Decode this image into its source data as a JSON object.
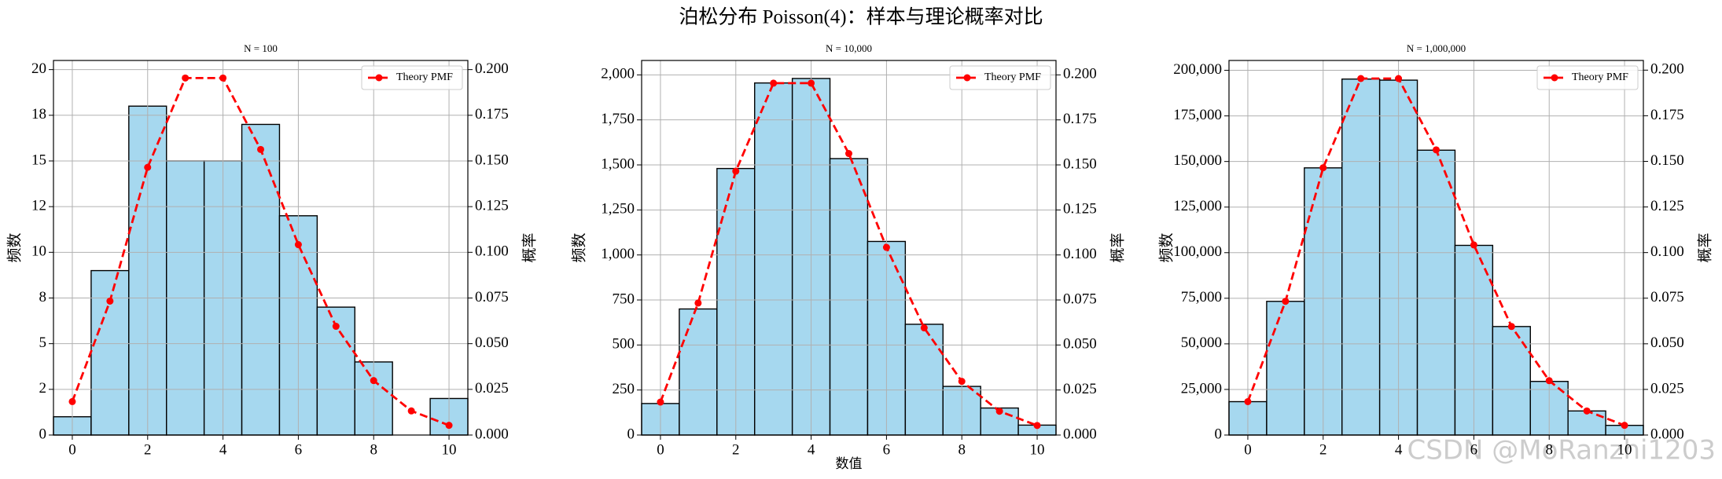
{
  "title": "泊松分布 Poisson(4)：样本与理论概率对比",
  "watermark": "CSDN @MoRanzhi1203",
  "chart_data": [
    {
      "type": "histogram",
      "title": "N = 100",
      "ylabel": "频数",
      "y2label": "概率",
      "bins": [
        -0.5,
        0.5,
        1.5,
        2.5,
        3.5,
        4.5,
        5.5,
        6.5,
        7.5,
        8.5,
        9.5,
        10.5
      ],
      "values": [
        1,
        9,
        18,
        15,
        15,
        17,
        12,
        7,
        4,
        0,
        2
      ],
      "color": "#a6d8ef",
      "edgecolor": "#000000",
      "xlim": [
        -0.5,
        10.5
      ],
      "xticks": [
        0,
        2,
        4,
        6,
        8,
        10
      ],
      "ylim": [
        0,
        20.5
      ],
      "yticks": [
        0,
        {
          "value": 2.5,
          "label": "2"
        },
        5,
        {
          "value": 7.5,
          "label": "8"
        },
        10,
        {
          "value": 12.5,
          "label": "12"
        },
        15,
        {
          "value": 17.5,
          "label": "18"
        },
        20
      ],
      "y2lim": [
        0,
        0.205
      ],
      "y2ticks": [
        {
          "value": 0,
          "label": "0.000"
        },
        0.025,
        {
          "value": 0.05,
          "label": "0.050"
        },
        0.075,
        {
          "value": 0.1,
          "label": "0.100"
        },
        0.125,
        {
          "value": 0.15,
          "label": "0.150"
        },
        0.175,
        {
          "value": 0.2,
          "label": "0.200"
        }
      ],
      "grid": true,
      "legend": "upper right",
      "series": [
        {
          "name": "Theory PMF",
          "color": "#ff0000",
          "axis": "y2",
          "x": [
            0,
            1,
            2,
            3,
            4,
            5,
            6,
            7,
            8,
            9,
            10
          ],
          "values": [
            0.0183,
            0.0733,
            0.1465,
            0.1954,
            0.1954,
            0.1563,
            0.1042,
            0.0595,
            0.0298,
            0.0132,
            0.0053
          ]
        }
      ]
    },
    {
      "type": "histogram",
      "title": "N = 10,000",
      "xlabel": "数值",
      "ylabel": "频数",
      "y2label": "概率",
      "bins": [
        -0.5,
        0.5,
        1.5,
        2.5,
        3.5,
        4.5,
        5.5,
        6.5,
        7.5,
        8.5,
        9.5,
        10.5
      ],
      "values": [
        175,
        700,
        1480,
        1955,
        1980,
        1535,
        1075,
        615,
        270,
        150,
        55
      ],
      "color": "#a6d8ef",
      "edgecolor": "#000000",
      "xlim": [
        -0.5,
        10.5
      ],
      "xticks": [
        0,
        2,
        4,
        6,
        8,
        10
      ],
      "ylim": [
        0,
        2080
      ],
      "yticks": [
        0,
        250,
        500,
        750,
        {
          "value": 1000,
          "label": "1,000"
        },
        {
          "value": 1250,
          "label": "1,250"
        },
        {
          "value": 1500,
          "label": "1,500"
        },
        {
          "value": 1750,
          "label": "1,750"
        },
        {
          "value": 2000,
          "label": "2,000"
        }
      ],
      "y2lim": [
        0,
        0.208
      ],
      "y2ticks": [
        {
          "value": 0,
          "label": "0.000"
        },
        0.025,
        {
          "value": 0.05,
          "label": "0.050"
        },
        0.075,
        {
          "value": 0.1,
          "label": "0.100"
        },
        0.125,
        {
          "value": 0.15,
          "label": "0.150"
        },
        0.175,
        {
          "value": 0.2,
          "label": "0.200"
        }
      ],
      "grid": true,
      "legend": "upper right",
      "series": [
        {
          "name": "Theory PMF",
          "color": "#ff0000",
          "axis": "y2",
          "x": [
            0,
            1,
            2,
            3,
            4,
            5,
            6,
            7,
            8,
            9,
            10
          ],
          "values": [
            0.0183,
            0.0733,
            0.1465,
            0.1954,
            0.1954,
            0.1563,
            0.1042,
            0.0595,
            0.0298,
            0.0132,
            0.0053
          ]
        }
      ]
    },
    {
      "type": "histogram",
      "title": "N = 1,000,000",
      "ylabel": "频数",
      "y2label": "概率",
      "bins": [
        -0.5,
        0.5,
        1.5,
        2.5,
        3.5,
        4.5,
        5.5,
        6.5,
        7.5,
        8.5,
        9.5,
        10.5
      ],
      "values": [
        18300,
        73300,
        146500,
        195200,
        194600,
        156200,
        104000,
        59500,
        29400,
        13200,
        5300
      ],
      "color": "#a6d8ef",
      "edgecolor": "#000000",
      "xlim": [
        -0.5,
        10.5
      ],
      "xticks": [
        0,
        2,
        4,
        6,
        8,
        10
      ],
      "ylim": [
        0,
        205400
      ],
      "yticks": [
        0,
        {
          "value": 25000,
          "label": "25,000"
        },
        {
          "value": 50000,
          "label": "50,000"
        },
        {
          "value": 75000,
          "label": "75,000"
        },
        {
          "value": 100000,
          "label": "100,000"
        },
        {
          "value": 125000,
          "label": "125,000"
        },
        {
          "value": 150000,
          "label": "150,000"
        },
        {
          "value": 175000,
          "label": "175,000"
        },
        {
          "value": 200000,
          "label": "200,000"
        }
      ],
      "y2lim": [
        0,
        0.2053
      ],
      "y2ticks": [
        {
          "value": 0,
          "label": "0.000"
        },
        0.025,
        {
          "value": 0.05,
          "label": "0.050"
        },
        0.075,
        {
          "value": 0.1,
          "label": "0.100"
        },
        0.125,
        {
          "value": 0.15,
          "label": "0.150"
        },
        0.175,
        {
          "value": 0.2,
          "label": "0.200"
        }
      ],
      "grid": true,
      "legend": "upper right",
      "series": [
        {
          "name": "Theory PMF",
          "color": "#ff0000",
          "axis": "y2",
          "x": [
            0,
            1,
            2,
            3,
            4,
            5,
            6,
            7,
            8,
            9,
            10
          ],
          "values": [
            0.0183,
            0.0733,
            0.1465,
            0.1954,
            0.1954,
            0.1563,
            0.1042,
            0.0595,
            0.0298,
            0.0132,
            0.0053
          ]
        }
      ]
    }
  ]
}
